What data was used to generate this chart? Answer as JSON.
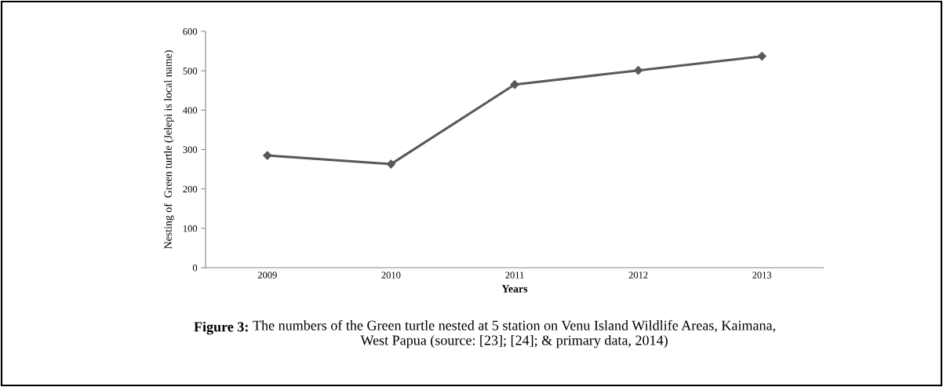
{
  "chart_data": {
    "type": "line",
    "categories": [
      "2009",
      "2010",
      "2011",
      "2012",
      "2013"
    ],
    "series": [
      {
        "color": "#595959",
        "values": [
          285,
          263,
          465,
          501,
          537
        ]
      }
    ],
    "xlabel": "Years",
    "ylabel": "Nesting of  Green turtle (Jelepi is local name)",
    "ylim": [
      0,
      600
    ],
    "yticks": [
      0,
      100,
      200,
      300,
      400,
      500,
      600
    ],
    "marker": "diamond",
    "line_style": "solid",
    "grid": false,
    "legend": false,
    "annotations": [
      "Figure 3:",
      "The numbers of the Green turtle nested at 5 station on Venu Island Wildlife Areas, Kaimana,\nWest Papua (source: [23]; [24]; & primary data, 2014)"
    ]
  }
}
